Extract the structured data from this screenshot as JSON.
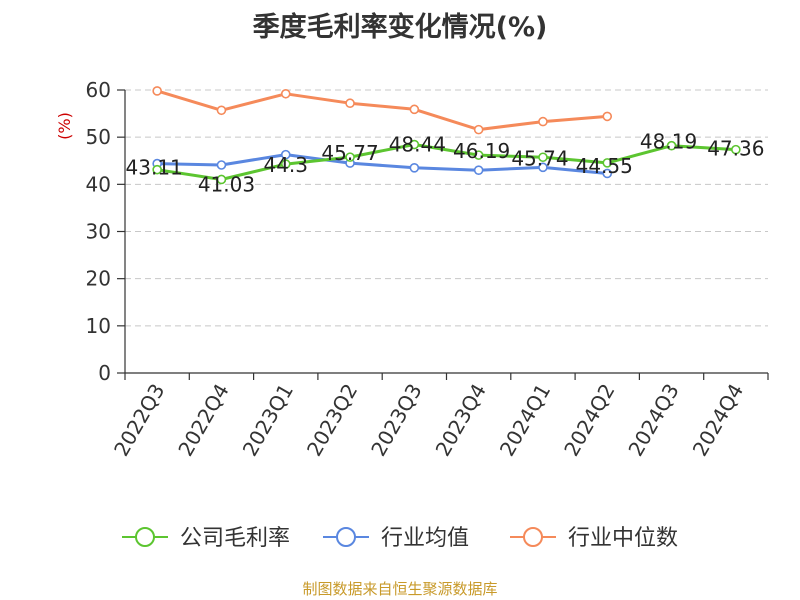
{
  "title": "季度毛利率变化情况(%)",
  "source": "制图数据来自恒生聚源数据库",
  "colors": {
    "company": "#5cc530",
    "industry_avg": "#5a87e0",
    "industry_median": "#f58a5a",
    "source": "#c89a2a",
    "ylabel": "#cc0000"
  },
  "chart_data": {
    "type": "line",
    "ylabel": "(%)",
    "ylim": [
      0,
      60
    ],
    "yticks": [
      0,
      10,
      20,
      30,
      40,
      50,
      60
    ],
    "grid": "horizontal-dashed",
    "legend_position": "bottom",
    "categories": [
      "2022Q3",
      "2022Q4",
      "2023Q1",
      "2023Q2",
      "2023Q3",
      "2023Q4",
      "2024Q1",
      "2024Q2",
      "2024Q3",
      "2024Q4"
    ],
    "series": [
      {
        "name": "公司毛利率",
        "color": "#5cc530",
        "values": [
          43.11,
          41.03,
          44.3,
          45.77,
          48.44,
          46.19,
          45.74,
          44.55,
          48.19,
          47.36
        ],
        "labels": [
          "43.11",
          "41.03",
          "44.3",
          "45.77",
          "48.44",
          "46.19",
          "45.74",
          "44.55",
          "48.19",
          "47.36"
        ]
      },
      {
        "name": "行业均值",
        "color": "#5a87e0",
        "values": [
          44.4,
          44.1,
          46.3,
          44.5,
          43.5,
          43.0,
          43.6,
          42.3,
          null,
          null
        ]
      },
      {
        "name": "行业中位数",
        "color": "#f58a5a",
        "values": [
          59.8,
          55.7,
          59.2,
          57.2,
          55.9,
          51.6,
          53.3,
          54.4,
          null,
          null
        ]
      }
    ]
  }
}
